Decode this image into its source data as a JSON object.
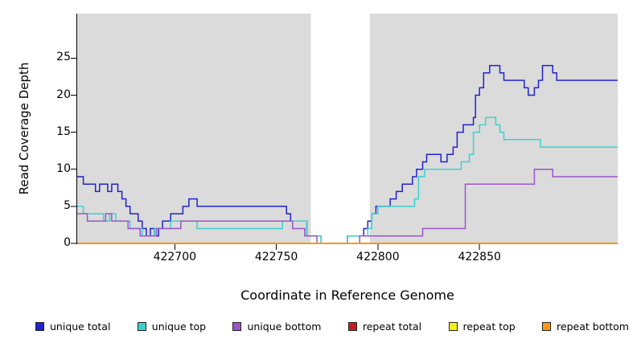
{
  "chart_data": {
    "type": "line",
    "step": true,
    "title": "",
    "xlabel": "Coordinate in Reference Genome",
    "ylabel": "Read Coverage Depth",
    "xlim": [
      422652,
      422918
    ],
    "ylim": [
      0,
      31
    ],
    "xticks": [
      422700,
      422750,
      422800,
      422850
    ],
    "yticks": [
      0,
      5,
      10,
      15,
      20,
      25
    ],
    "grid": false,
    "legend_position": "bottom",
    "plot_background": "#dbdbdb",
    "gap_region": {
      "from": 422767,
      "to": 422796,
      "color": "#ffffff"
    },
    "axis_color": "#000000",
    "series": [
      {
        "name": "unique total",
        "color": "#2222cc",
        "points": [
          [
            422652,
            9
          ],
          [
            422655,
            8
          ],
          [
            422661,
            7
          ],
          [
            422663,
            8
          ],
          [
            422667,
            7
          ],
          [
            422669,
            8
          ],
          [
            422672,
            7
          ],
          [
            422674,
            6
          ],
          [
            422676,
            5
          ],
          [
            422678,
            4
          ],
          [
            422682,
            3
          ],
          [
            422684,
            2
          ],
          [
            422686,
            1
          ],
          [
            422688,
            2
          ],
          [
            422690,
            1
          ],
          [
            422692,
            2
          ],
          [
            422694,
            3
          ],
          [
            422698,
            4
          ],
          [
            422704,
            5
          ],
          [
            422707,
            6
          ],
          [
            422711,
            5
          ],
          [
            422755,
            4
          ],
          [
            422757,
            3
          ],
          [
            422765,
            1
          ],
          [
            422772,
            0
          ],
          [
            422785,
            1
          ],
          [
            422793,
            2
          ],
          [
            422795,
            3
          ],
          [
            422797,
            4
          ],
          [
            422799,
            5
          ],
          [
            422806,
            6
          ],
          [
            422809,
            7
          ],
          [
            422812,
            8
          ],
          [
            422817,
            9
          ],
          [
            422819,
            10
          ],
          [
            422822,
            11
          ],
          [
            422824,
            12
          ],
          [
            422831,
            11
          ],
          [
            422834,
            12
          ],
          [
            422837,
            13
          ],
          [
            422839,
            15
          ],
          [
            422842,
            16
          ],
          [
            422847,
            17
          ],
          [
            422848,
            20
          ],
          [
            422850,
            21
          ],
          [
            422852,
            23
          ],
          [
            422855,
            24
          ],
          [
            422860,
            23
          ],
          [
            422862,
            22
          ],
          [
            422872,
            21
          ],
          [
            422874,
            20
          ],
          [
            422877,
            21
          ],
          [
            422879,
            22
          ],
          [
            422881,
            24
          ],
          [
            422886,
            23
          ],
          [
            422888,
            22
          ]
        ]
      },
      {
        "name": "unique top",
        "color": "#3fcfcf",
        "points": [
          [
            422652,
            5
          ],
          [
            422655,
            4
          ],
          [
            422665,
            3
          ],
          [
            422668,
            4
          ],
          [
            422671,
            3
          ],
          [
            422678,
            2
          ],
          [
            422684,
            1
          ],
          [
            422690,
            2
          ],
          [
            422698,
            3
          ],
          [
            422711,
            2
          ],
          [
            422753,
            3
          ],
          [
            422765,
            1
          ],
          [
            422772,
            0
          ],
          [
            422785,
            1
          ],
          [
            422795,
            2
          ],
          [
            422797,
            4
          ],
          [
            422800,
            5
          ],
          [
            422818,
            6
          ],
          [
            422820,
            9
          ],
          [
            422823,
            10
          ],
          [
            422841,
            11
          ],
          [
            422845,
            12
          ],
          [
            422847,
            15
          ],
          [
            422850,
            16
          ],
          [
            422853,
            17
          ],
          [
            422858,
            16
          ],
          [
            422860,
            15
          ],
          [
            422862,
            14
          ],
          [
            422880,
            13
          ]
        ]
      },
      {
        "name": "unique bottom",
        "color": "#9955cc",
        "points": [
          [
            422652,
            4
          ],
          [
            422657,
            3
          ],
          [
            422666,
            4
          ],
          [
            422669,
            3
          ],
          [
            422677,
            2
          ],
          [
            422683,
            1
          ],
          [
            422691,
            2
          ],
          [
            422703,
            3
          ],
          [
            422758,
            2
          ],
          [
            422764,
            1
          ],
          [
            422770,
            0
          ],
          [
            422791,
            1
          ],
          [
            422822,
            2
          ],
          [
            422843,
            8
          ],
          [
            422877,
            10
          ],
          [
            422886,
            9
          ]
        ]
      },
      {
        "name": "repeat total",
        "color": "#c21f1f",
        "points": [
          [
            422652,
            0
          ]
        ]
      },
      {
        "name": "repeat top",
        "color": "#f2f218",
        "points": [
          [
            422652,
            0
          ]
        ]
      },
      {
        "name": "repeat bottom",
        "color": "#ff9913",
        "points": [
          [
            422652,
            0
          ]
        ]
      }
    ]
  }
}
